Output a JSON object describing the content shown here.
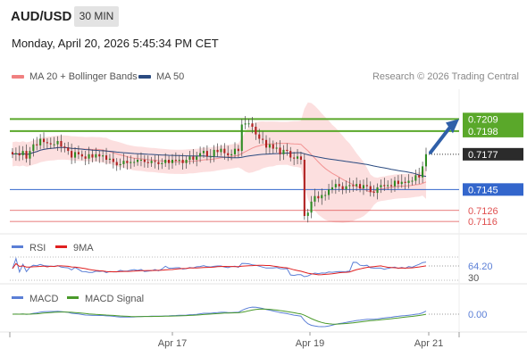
{
  "header": {
    "symbol": "AUD/USD",
    "timeframe": "30 MIN",
    "datetime": "Monday, April 20, 2026 5:45:34 PM CET"
  },
  "legend": {
    "ma20": {
      "label": "MA 20 + Bollinger Bands",
      "color": "#f08080"
    },
    "ma50": {
      "label": "MA 50",
      "color": "#2a4a80"
    }
  },
  "credit": "Research © 2026 Trading Central",
  "colors": {
    "green_level": "#5aa82a",
    "blue_level": "#3366cc",
    "red_level": "#e05050",
    "arrow": "#2f5fa8",
    "bull": "#2e8b22",
    "bear": "#b02020",
    "band_fill": "#fcd9d9"
  },
  "chart_data": [
    {
      "type": "candlestick",
      "x": [
        "Apr 17",
        "Apr 19",
        "Apr 21"
      ],
      "ylim": [
        0.7108,
        0.7236
      ],
      "levels": [
        {
          "value": 0.7209,
          "label": "0.7209",
          "kind": "resistance"
        },
        {
          "value": 0.7198,
          "label": "0.7198",
          "kind": "resistance"
        },
        {
          "value": 0.7177,
          "label": "0.7177",
          "kind": "last"
        },
        {
          "value": 0.7145,
          "label": "0.7145",
          "kind": "support"
        },
        {
          "value": 0.7126,
          "label": "0.7126",
          "kind": "support"
        },
        {
          "value": 0.7116,
          "label": "0.7116",
          "kind": "support"
        }
      ],
      "closes": [
        0.7177,
        0.7178,
        0.7176,
        0.718,
        0.7173,
        0.718,
        0.7186,
        0.7185,
        0.7191,
        0.7188,
        0.7187,
        0.7186,
        0.7186,
        0.7189,
        0.7184,
        0.7183,
        0.718,
        0.7174,
        0.7179,
        0.7177,
        0.7175,
        0.7173,
        0.7177,
        0.7174,
        0.7177,
        0.7175,
        0.7176,
        0.7172,
        0.7173,
        0.717,
        0.7167,
        0.7168,
        0.7171,
        0.7169,
        0.717,
        0.717,
        0.7172,
        0.7172,
        0.717,
        0.7169,
        0.7171,
        0.717,
        0.7168,
        0.7169,
        0.7172,
        0.7169,
        0.7172,
        0.7171,
        0.7172,
        0.7169,
        0.7172,
        0.7175,
        0.7172,
        0.7175,
        0.7178,
        0.718,
        0.7175,
        0.7175,
        0.7181,
        0.7179,
        0.7182,
        0.7178,
        0.7176,
        0.7177,
        0.7182,
        0.718,
        0.7204,
        0.7205,
        0.7205,
        0.7202,
        0.7195,
        0.7191,
        0.719,
        0.7183,
        0.7186,
        0.7182,
        0.7183,
        0.7177,
        0.7181,
        0.718,
        0.7174,
        0.7173,
        0.7175,
        0.7172,
        0.7121,
        0.7124,
        0.7134,
        0.7139,
        0.7137,
        0.714,
        0.714,
        0.7145,
        0.7147,
        0.715,
        0.7148,
        0.7145,
        0.7148,
        0.7149,
        0.7148,
        0.715,
        0.7146,
        0.7149,
        0.7148,
        0.7143,
        0.7142,
        0.7147,
        0.7149,
        0.7148,
        0.7149,
        0.7148,
        0.7153,
        0.715,
        0.7152,
        0.7151,
        0.7153,
        0.7153,
        0.7158,
        0.7156,
        0.7166,
        0.7177
      ],
      "target_arrow": {
        "from": 0.7177,
        "to": 0.7209
      }
    },
    {
      "type": "line",
      "name": "RSI",
      "series": [
        {
          "name": "RSI",
          "color": "#5b7fd6"
        },
        {
          "name": "9MA",
          "color": "#e02020"
        }
      ],
      "ylim": [
        30,
        70
      ],
      "last_value_label": "64.20",
      "lower_tick": "30"
    },
    {
      "type": "line",
      "name": "MACD",
      "series": [
        {
          "name": "MACD",
          "color": "#5b7fd6"
        },
        {
          "name": "MACD Signal",
          "color": "#4a9a2a"
        }
      ],
      "zero_label": "0.00"
    }
  ],
  "xaxis": [
    "Apr 17",
    "Apr 19",
    "Apr 21"
  ]
}
